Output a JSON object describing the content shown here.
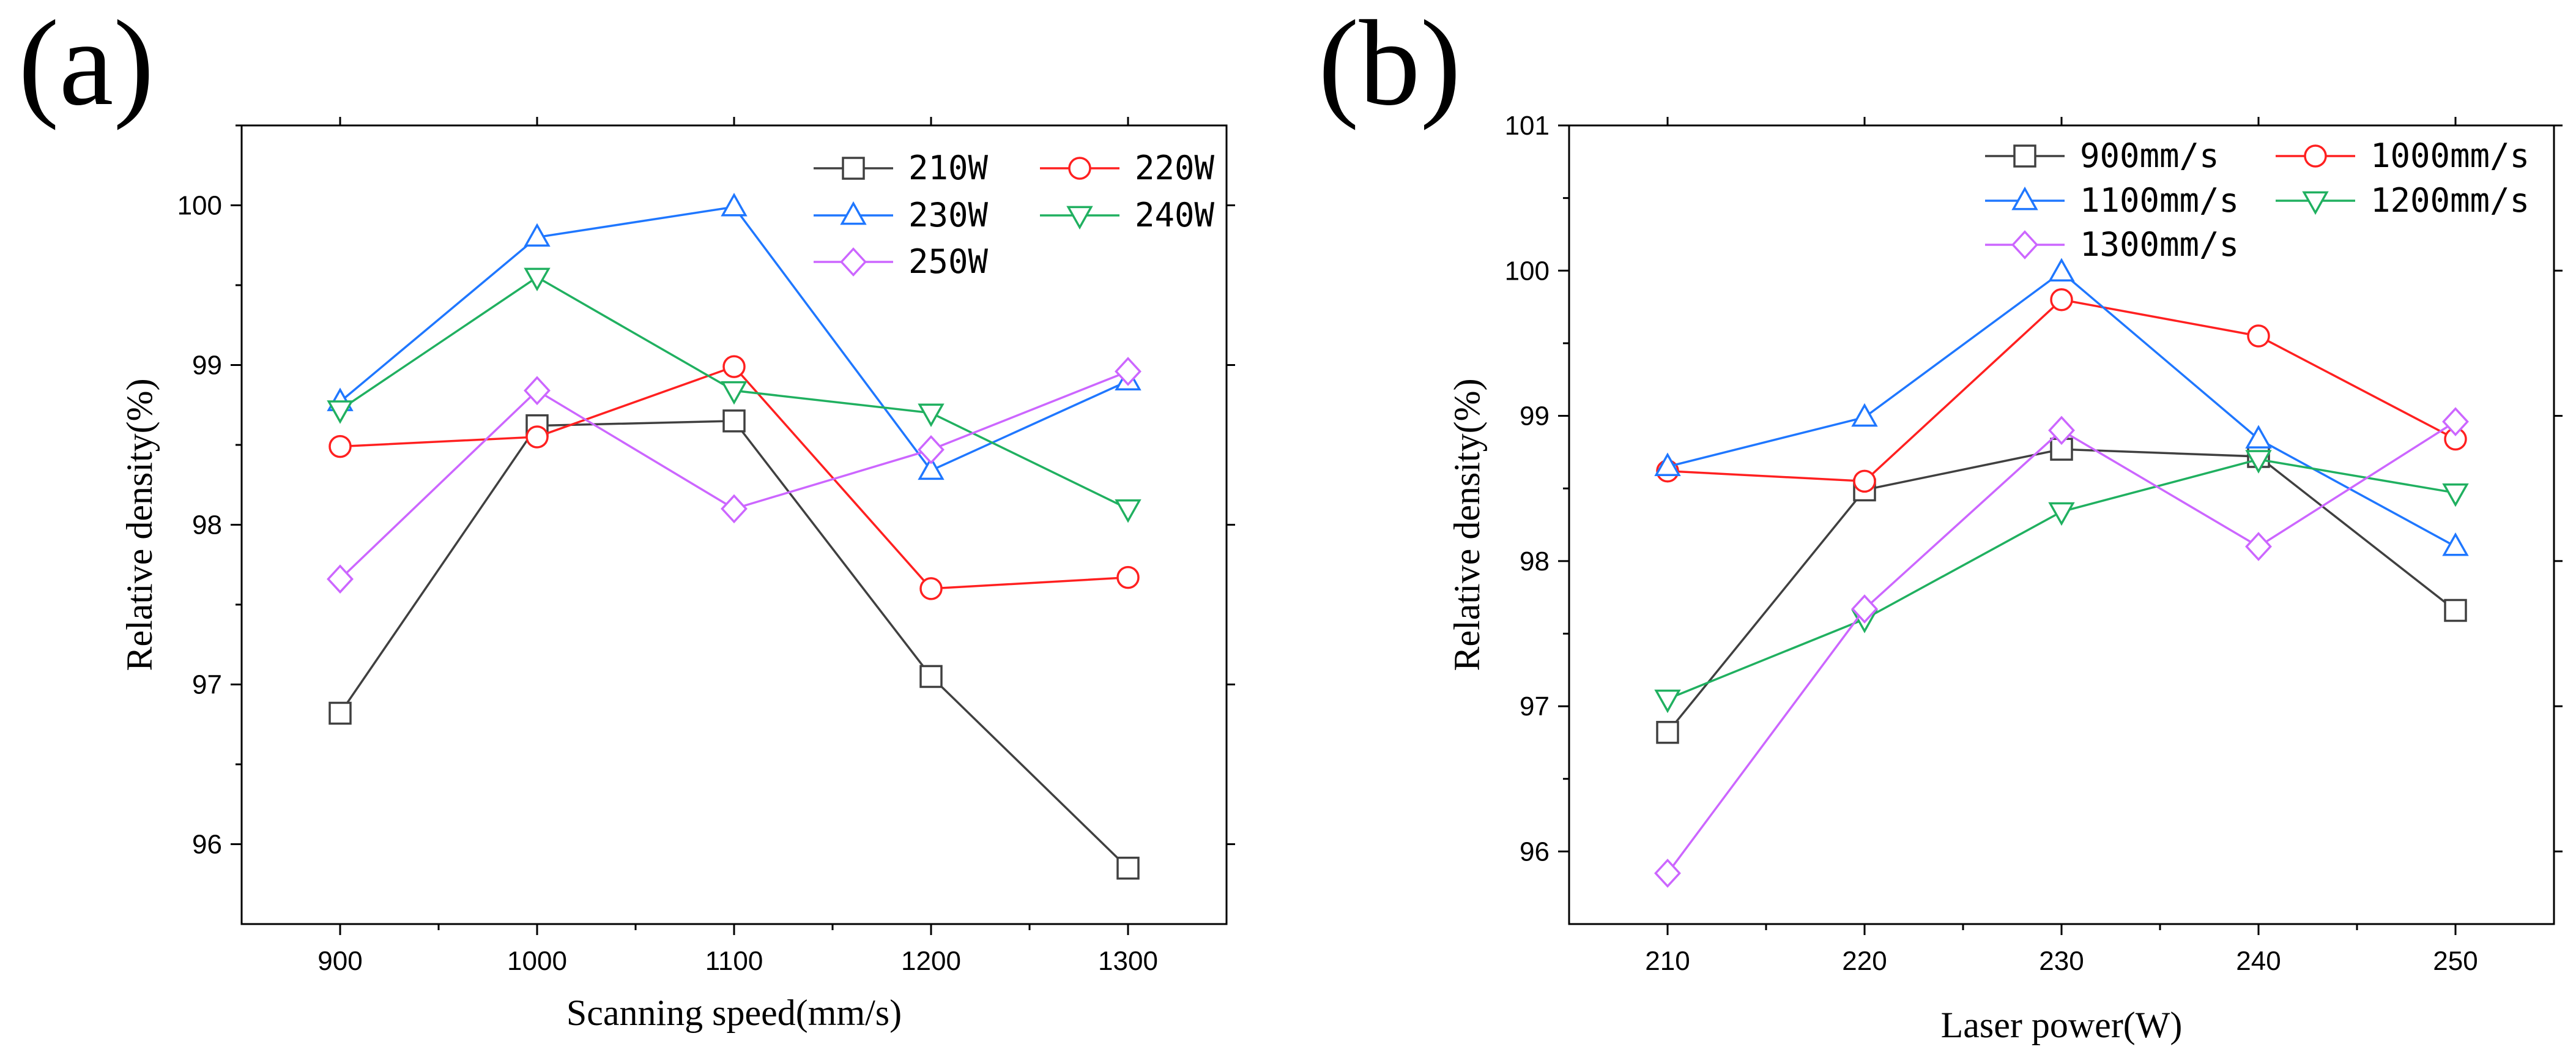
{
  "chart_data": [
    {
      "type": "line",
      "panel_label": "(a)",
      "xlabel": "Scanning speed(mm/s)",
      "ylabel": "Relative density(%)",
      "x": [
        900,
        1000,
        1100,
        1200,
        1300
      ],
      "xlim": [
        850,
        1350
      ],
      "ylim": [
        95.5,
        100.5
      ],
      "yticks": [
        96,
        97,
        98,
        99,
        100
      ],
      "legend_position": "top-right",
      "series": [
        {
          "name": "210W",
          "color": "#404040",
          "marker": "square",
          "values": [
            96.82,
            98.62,
            98.65,
            97.05,
            95.85
          ]
        },
        {
          "name": "220W",
          "color": "#ff2020",
          "marker": "circle",
          "values": [
            98.49,
            98.55,
            98.99,
            97.6,
            97.67
          ]
        },
        {
          "name": "230W",
          "color": "#1f77ff",
          "marker": "triangle-up",
          "values": [
            98.77,
            99.8,
            99.99,
            98.34,
            98.9
          ]
        },
        {
          "name": "240W",
          "color": "#20b060",
          "marker": "triangle-down",
          "values": [
            98.72,
            99.55,
            98.84,
            98.7,
            98.1
          ]
        },
        {
          "name": "250W",
          "color": "#cc66ff",
          "marker": "diamond",
          "values": [
            97.66,
            98.84,
            98.1,
            98.47,
            98.96
          ]
        }
      ]
    },
    {
      "type": "line",
      "panel_label": "(b)",
      "xlabel": "Laser power(W)",
      "ylabel": "Relative density(%)",
      "x": [
        210,
        220,
        230,
        240,
        250
      ],
      "xlim": [
        205,
        255
      ],
      "ylim": [
        95.5,
        101
      ],
      "yticks": [
        96,
        97,
        98,
        99,
        100,
        101
      ],
      "legend_position": "top-right",
      "series": [
        {
          "name": "900mm/s",
          "color": "#404040",
          "marker": "square",
          "values": [
            96.82,
            98.49,
            98.77,
            98.72,
            97.66
          ]
        },
        {
          "name": "1000mm/s",
          "color": "#ff2020",
          "marker": "circle",
          "values": [
            98.62,
            98.55,
            99.8,
            99.55,
            98.84
          ]
        },
        {
          "name": "1100mm/s",
          "color": "#1f77ff",
          "marker": "triangle-up",
          "values": [
            98.65,
            98.99,
            99.99,
            98.84,
            98.1
          ]
        },
        {
          "name": "1200mm/s",
          "color": "#20b060",
          "marker": "triangle-down",
          "values": [
            97.05,
            97.6,
            98.34,
            98.7,
            98.47
          ]
        },
        {
          "name": "1300mm/s",
          "color": "#cc66ff",
          "marker": "diamond",
          "values": [
            95.85,
            97.67,
            98.9,
            98.1,
            98.96
          ]
        }
      ]
    }
  ]
}
